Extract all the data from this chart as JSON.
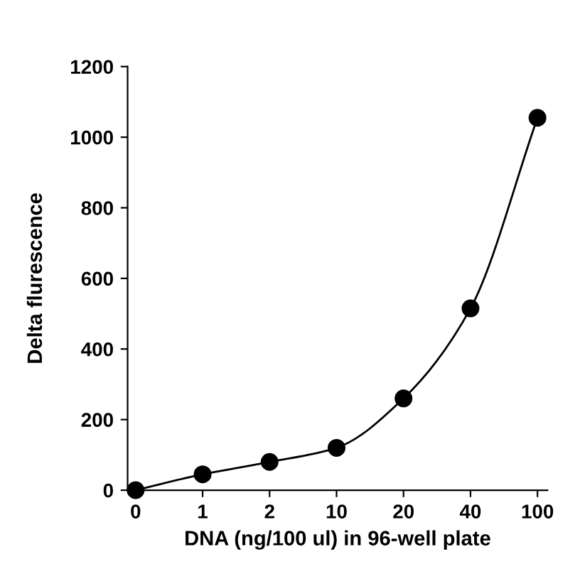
{
  "chart_data": {
    "type": "line",
    "xlabel": "DNA (ng/100 ul) in 96-well plate",
    "ylabel": "Delta flurescence",
    "categories": [
      "0",
      "1",
      "2",
      "10",
      "20",
      "40",
      "100"
    ],
    "series": [
      {
        "color": "#000000",
        "values": [
          0,
          45,
          80,
          120,
          260,
          515,
          1055
        ]
      }
    ],
    "ylim": [
      0,
      1200
    ],
    "yticks": [
      0,
      200,
      400,
      600,
      800,
      1000,
      1200
    ],
    "grid": false,
    "marker": "circle",
    "line_style": "solid",
    "legend": false
  }
}
